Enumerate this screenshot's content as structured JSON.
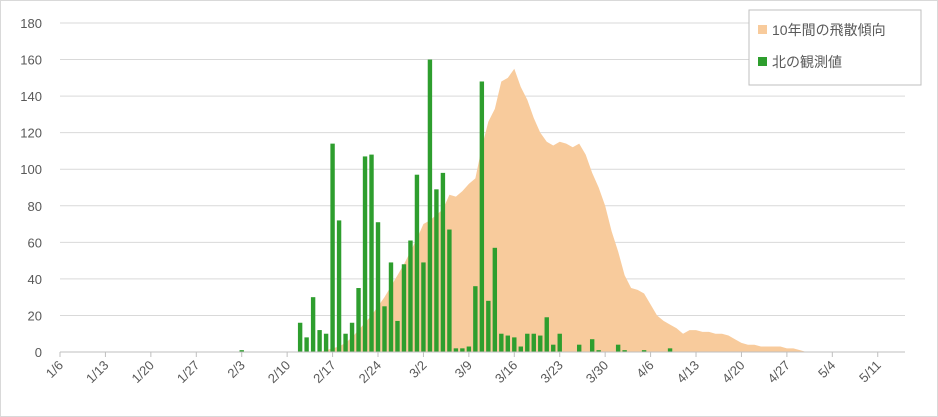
{
  "chart_data": {
    "type": "bar",
    "legend": "top-right",
    "grid": true,
    "ylim": [
      0,
      180
    ],
    "yticks": [
      0,
      20,
      40,
      60,
      80,
      100,
      120,
      140,
      160,
      180
    ],
    "categories": [
      "1/6",
      null,
      null,
      null,
      null,
      null,
      null,
      "1/13",
      null,
      null,
      null,
      null,
      null,
      null,
      "1/20",
      null,
      null,
      null,
      null,
      null,
      null,
      "1/27",
      null,
      null,
      null,
      null,
      null,
      null,
      "2/3",
      null,
      null,
      null,
      null,
      null,
      null,
      "2/10",
      null,
      null,
      null,
      null,
      null,
      null,
      "2/17",
      null,
      null,
      null,
      null,
      null,
      null,
      "2/24",
      null,
      null,
      null,
      null,
      null,
      null,
      "3/2",
      null,
      null,
      null,
      null,
      null,
      null,
      "3/9",
      null,
      null,
      null,
      null,
      null,
      null,
      "3/16",
      null,
      null,
      null,
      null,
      null,
      null,
      "3/23",
      null,
      null,
      null,
      null,
      null,
      null,
      "3/30",
      null,
      null,
      null,
      null,
      null,
      null,
      "4/6",
      null,
      null,
      null,
      null,
      null,
      null,
      "4/13",
      null,
      null,
      null,
      null,
      null,
      null,
      "4/20",
      null,
      null,
      null,
      null,
      null,
      null,
      "4/27",
      null,
      null,
      null,
      null,
      null,
      null,
      "5/4",
      null,
      null,
      null,
      null,
      null,
      null,
      "5/11",
      null,
      null,
      null
    ],
    "series": [
      {
        "name": "10年間の飛散傾向",
        "type": "area",
        "color": "#f8cb9c",
        "values": [
          0,
          0,
          0,
          0,
          0,
          0,
          0,
          0,
          0,
          0,
          0,
          0,
          0,
          0,
          0,
          0,
          0,
          0,
          0,
          0,
          0,
          0,
          0,
          0,
          0,
          0,
          0,
          0,
          0,
          0,
          0,
          0,
          0,
          0,
          0,
          0,
          0,
          0,
          0,
          0,
          0,
          1,
          2,
          3,
          5,
          8,
          12,
          16,
          20,
          25,
          30,
          36,
          42,
          48,
          55,
          62,
          70,
          72,
          75,
          78,
          86,
          85,
          88,
          92,
          95,
          112,
          126,
          133,
          148,
          150,
          155,
          145,
          138,
          128,
          120,
          115,
          113,
          115,
          114,
          112,
          114,
          108,
          98,
          90,
          80,
          66,
          55,
          42,
          35,
          34,
          32,
          26,
          20,
          17,
          15,
          13,
          10,
          12,
          12,
          11,
          11,
          10,
          10,
          9,
          7,
          5,
          4,
          4,
          3,
          3,
          3,
          3,
          2,
          2,
          1,
          0,
          0,
          0,
          0,
          0,
          0,
          0,
          0,
          0,
          0,
          0,
          0,
          0,
          0,
          0
        ]
      },
      {
        "name": "北の観測値",
        "type": "bar",
        "color": "#2e9e2e",
        "values": [
          0,
          0,
          0,
          0,
          0,
          0,
          0,
          0,
          0,
          0,
          0,
          0,
          0,
          0,
          0,
          0,
          0,
          0,
          0,
          0,
          0,
          0,
          0,
          0,
          0,
          0,
          0,
          0,
          1,
          0,
          0,
          0,
          0,
          0,
          0,
          0,
          0,
          16,
          8,
          30,
          12,
          10,
          114,
          72,
          10,
          16,
          35,
          107,
          108,
          71,
          25,
          49,
          17,
          48,
          61,
          97,
          49,
          160,
          89,
          98,
          67,
          2,
          2,
          3,
          36,
          148,
          28,
          57,
          10,
          9,
          8,
          3,
          10,
          10,
          9,
          19,
          4,
          10,
          0,
          0,
          4,
          0,
          7,
          1,
          0,
          0,
          4,
          1,
          0,
          0,
          1,
          0,
          0,
          0,
          2,
          0,
          0,
          0,
          0,
          0,
          0,
          0,
          0,
          0,
          0,
          0,
          0,
          0,
          0,
          0,
          0,
          0,
          0,
          0,
          0,
          0,
          0,
          0,
          0,
          0,
          0,
          0,
          0,
          0,
          0,
          0,
          0,
          0,
          0,
          0
        ]
      }
    ]
  }
}
